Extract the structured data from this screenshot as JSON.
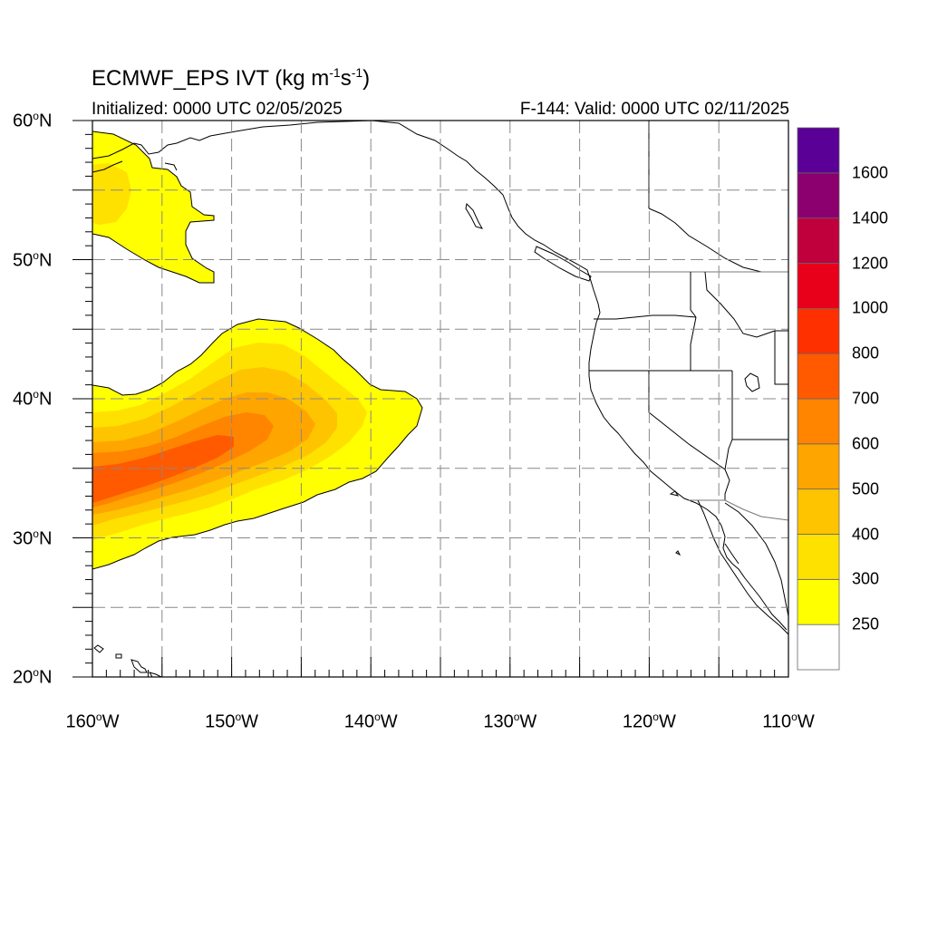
{
  "title": {
    "prefix": "ECMWF_EPS IVT (kg m",
    "sup1": "-1",
    "mid": "s",
    "sup2": "-1",
    "suffix": ")"
  },
  "subtitle_left": "Initialized: 0000 UTC 02/05/2025",
  "subtitle_right": "F-144: Valid: 0000 UTC 02/11/2025",
  "lat_labels": [
    {
      "num": "60",
      "deg": "o",
      "hem": "N"
    },
    {
      "num": "50",
      "deg": "o",
      "hem": "N"
    },
    {
      "num": "40",
      "deg": "o",
      "hem": "N"
    },
    {
      "num": "30",
      "deg": "o",
      "hem": "N"
    },
    {
      "num": "20",
      "deg": "o",
      "hem": "N"
    }
  ],
  "lon_labels": [
    {
      "num": "160",
      "deg": "o",
      "hem": "W"
    },
    {
      "num": "150",
      "deg": "o",
      "hem": "W"
    },
    {
      "num": "140",
      "deg": "o",
      "hem": "W"
    },
    {
      "num": "130",
      "deg": "o",
      "hem": "W"
    },
    {
      "num": "120",
      "deg": "o",
      "hem": "W"
    },
    {
      "num": "110",
      "deg": "o",
      "hem": "W"
    }
  ],
  "colorbar": {
    "labels": [
      "1600",
      "1400",
      "1200",
      "1000",
      "800",
      "700",
      "600",
      "500",
      "400",
      "300",
      "250"
    ],
    "colors": [
      "#ffffff",
      "#ffff00",
      "#ffe100",
      "#ffc400",
      "#ffa500",
      "#ff8400",
      "#ff5a00",
      "#ff3000",
      "#e8001a",
      "#c0003c",
      "#8b006e",
      "#5a0096"
    ]
  },
  "map_data": {
    "extent": {
      "lon_min": -160,
      "lon_max": -110,
      "lat_min": 20,
      "lat_max": 60
    },
    "grid_lines": {
      "lon": [
        -155,
        -150,
        -145,
        -140,
        -135,
        -130,
        -125,
        -120,
        -115
      ],
      "lat": [
        25,
        30,
        35,
        40,
        45,
        50,
        55
      ]
    },
    "ivt_field": "Atmospheric river plume extending from the western edge near 33°N to about 136.5°W at 40°N; secondary region in the northwest corner near 50-59°N"
  }
}
